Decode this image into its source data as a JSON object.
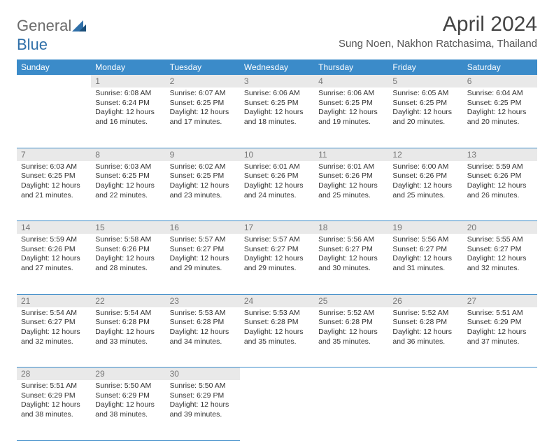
{
  "logo": {
    "part1": "General",
    "part2": "Blue"
  },
  "title": "April 2024",
  "location": "Sung Noen, Nakhon Ratchasima, Thailand",
  "colors": {
    "header_bg": "#3b8bc9",
    "header_text": "#ffffff",
    "daynum_bg": "#e9e9e9",
    "daynum_text": "#777777",
    "body_text": "#333333",
    "rule": "#3b8bc9"
  },
  "weekdays": [
    "Sunday",
    "Monday",
    "Tuesday",
    "Wednesday",
    "Thursday",
    "Friday",
    "Saturday"
  ],
  "weeks": [
    [
      null,
      {
        "n": "1",
        "sunrise": "6:08 AM",
        "sunset": "6:24 PM",
        "daylight": "12 hours and 16 minutes."
      },
      {
        "n": "2",
        "sunrise": "6:07 AM",
        "sunset": "6:25 PM",
        "daylight": "12 hours and 17 minutes."
      },
      {
        "n": "3",
        "sunrise": "6:06 AM",
        "sunset": "6:25 PM",
        "daylight": "12 hours and 18 minutes."
      },
      {
        "n": "4",
        "sunrise": "6:06 AM",
        "sunset": "6:25 PM",
        "daylight": "12 hours and 19 minutes."
      },
      {
        "n": "5",
        "sunrise": "6:05 AM",
        "sunset": "6:25 PM",
        "daylight": "12 hours and 20 minutes."
      },
      {
        "n": "6",
        "sunrise": "6:04 AM",
        "sunset": "6:25 PM",
        "daylight": "12 hours and 20 minutes."
      }
    ],
    [
      {
        "n": "7",
        "sunrise": "6:03 AM",
        "sunset": "6:25 PM",
        "daylight": "12 hours and 21 minutes."
      },
      {
        "n": "8",
        "sunrise": "6:03 AM",
        "sunset": "6:25 PM",
        "daylight": "12 hours and 22 minutes."
      },
      {
        "n": "9",
        "sunrise": "6:02 AM",
        "sunset": "6:25 PM",
        "daylight": "12 hours and 23 minutes."
      },
      {
        "n": "10",
        "sunrise": "6:01 AM",
        "sunset": "6:26 PM",
        "daylight": "12 hours and 24 minutes."
      },
      {
        "n": "11",
        "sunrise": "6:01 AM",
        "sunset": "6:26 PM",
        "daylight": "12 hours and 25 minutes."
      },
      {
        "n": "12",
        "sunrise": "6:00 AM",
        "sunset": "6:26 PM",
        "daylight": "12 hours and 25 minutes."
      },
      {
        "n": "13",
        "sunrise": "5:59 AM",
        "sunset": "6:26 PM",
        "daylight": "12 hours and 26 minutes."
      }
    ],
    [
      {
        "n": "14",
        "sunrise": "5:59 AM",
        "sunset": "6:26 PM",
        "daylight": "12 hours and 27 minutes."
      },
      {
        "n": "15",
        "sunrise": "5:58 AM",
        "sunset": "6:26 PM",
        "daylight": "12 hours and 28 minutes."
      },
      {
        "n": "16",
        "sunrise": "5:57 AM",
        "sunset": "6:27 PM",
        "daylight": "12 hours and 29 minutes."
      },
      {
        "n": "17",
        "sunrise": "5:57 AM",
        "sunset": "6:27 PM",
        "daylight": "12 hours and 29 minutes."
      },
      {
        "n": "18",
        "sunrise": "5:56 AM",
        "sunset": "6:27 PM",
        "daylight": "12 hours and 30 minutes."
      },
      {
        "n": "19",
        "sunrise": "5:56 AM",
        "sunset": "6:27 PM",
        "daylight": "12 hours and 31 minutes."
      },
      {
        "n": "20",
        "sunrise": "5:55 AM",
        "sunset": "6:27 PM",
        "daylight": "12 hours and 32 minutes."
      }
    ],
    [
      {
        "n": "21",
        "sunrise": "5:54 AM",
        "sunset": "6:27 PM",
        "daylight": "12 hours and 32 minutes."
      },
      {
        "n": "22",
        "sunrise": "5:54 AM",
        "sunset": "6:28 PM",
        "daylight": "12 hours and 33 minutes."
      },
      {
        "n": "23",
        "sunrise": "5:53 AM",
        "sunset": "6:28 PM",
        "daylight": "12 hours and 34 minutes."
      },
      {
        "n": "24",
        "sunrise": "5:53 AM",
        "sunset": "6:28 PM",
        "daylight": "12 hours and 35 minutes."
      },
      {
        "n": "25",
        "sunrise": "5:52 AM",
        "sunset": "6:28 PM",
        "daylight": "12 hours and 35 minutes."
      },
      {
        "n": "26",
        "sunrise": "5:52 AM",
        "sunset": "6:28 PM",
        "daylight": "12 hours and 36 minutes."
      },
      {
        "n": "27",
        "sunrise": "5:51 AM",
        "sunset": "6:29 PM",
        "daylight": "12 hours and 37 minutes."
      }
    ],
    [
      {
        "n": "28",
        "sunrise": "5:51 AM",
        "sunset": "6:29 PM",
        "daylight": "12 hours and 38 minutes."
      },
      {
        "n": "29",
        "sunrise": "5:50 AM",
        "sunset": "6:29 PM",
        "daylight": "12 hours and 38 minutes."
      },
      {
        "n": "30",
        "sunrise": "5:50 AM",
        "sunset": "6:29 PM",
        "daylight": "12 hours and 39 minutes."
      },
      null,
      null,
      null,
      null
    ]
  ]
}
